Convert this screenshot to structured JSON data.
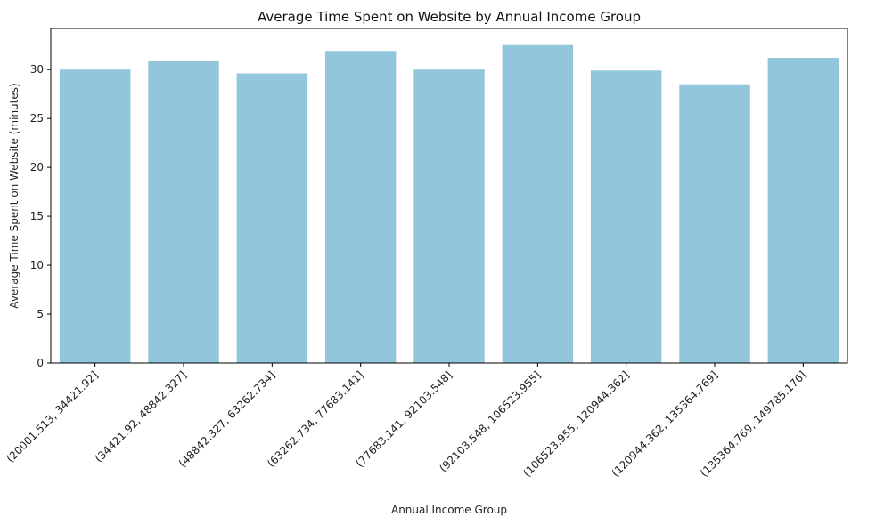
{
  "chart_data": {
    "type": "bar",
    "title": "Average Time Spent on Website by Annual Income Group",
    "xlabel": "Annual Income Group",
    "ylabel": "Average Time Spent on Website (minutes)",
    "categories": [
      "(20001.513, 34421.92]",
      "(34421.92, 48842.327]",
      "(48842.327, 63262.734]",
      "(63262.734, 77683.141]",
      "(77683.141, 92103.548]",
      "(92103.548, 106523.955]",
      "(106523.955, 120944.362]",
      "(120944.362, 135364.769]",
      "(135364.769, 149785.176]"
    ],
    "values": [
      30.0,
      30.9,
      29.6,
      31.9,
      30.0,
      32.5,
      29.9,
      28.5,
      31.2
    ],
    "ylim": [
      0,
      34.2
    ],
    "yticks": [
      0,
      5,
      10,
      15,
      20,
      25,
      30
    ],
    "bar_color": "#92c6dd",
    "grid": false,
    "legend": "none"
  }
}
